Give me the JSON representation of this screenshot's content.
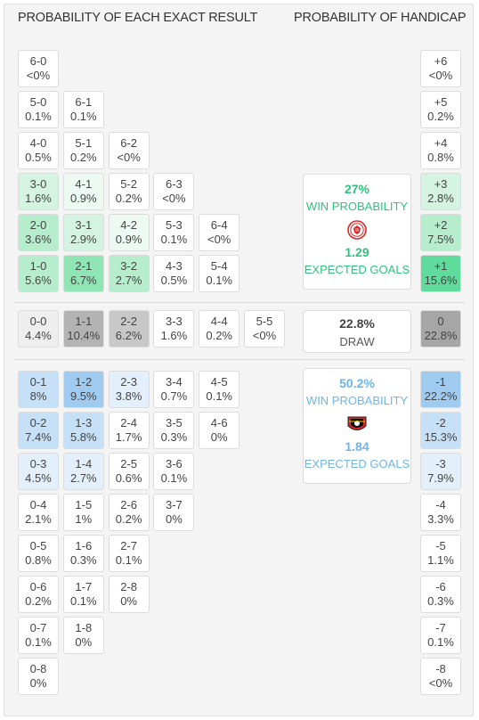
{
  "headers": {
    "left": "PROBABILITY OF EACH EXACT RESULT",
    "right": "PROBABILITY OF HANDICAP"
  },
  "colors": {
    "home_scale": [
      "#ffffff",
      "#edfaf2",
      "#d4f4e1",
      "#b6edcc",
      "#8fe5b3"
    ],
    "draw_scale": [
      "#eeeeee",
      "#c8c8c8",
      "#b3b3b3"
    ],
    "away_scale": [
      "#ffffff",
      "#e3f0fb",
      "#c6e0f7",
      "#9fcbf0"
    ],
    "home_text": "#2ec27e",
    "away_text": "#6fb5e6"
  },
  "home_results": [
    {
      "score": "6-0",
      "prob": "<0%",
      "shade": 0
    },
    {
      "score": "5-0",
      "prob": "0.1%",
      "shade": 0
    },
    {
      "score": "6-1",
      "prob": "0.1%",
      "shade": 0
    },
    {
      "score": "4-0",
      "prob": "0.5%",
      "shade": 0
    },
    {
      "score": "5-1",
      "prob": "0.2%",
      "shade": 0
    },
    {
      "score": "6-2",
      "prob": "<0%",
      "shade": 0
    },
    {
      "score": "3-0",
      "prob": "1.6%",
      "shade": 2
    },
    {
      "score": "4-1",
      "prob": "0.9%",
      "shade": 1
    },
    {
      "score": "5-2",
      "prob": "0.2%",
      "shade": 0
    },
    {
      "score": "6-3",
      "prob": "<0%",
      "shade": 0
    },
    {
      "score": "2-0",
      "prob": "3.6%",
      "shade": 3
    },
    {
      "score": "3-1",
      "prob": "2.9%",
      "shade": 2
    },
    {
      "score": "4-2",
      "prob": "0.9%",
      "shade": 1
    },
    {
      "score": "5-3",
      "prob": "0.1%",
      "shade": 0
    },
    {
      "score": "6-4",
      "prob": "<0%",
      "shade": 0
    },
    {
      "score": "1-0",
      "prob": "5.6%",
      "shade": 3
    },
    {
      "score": "2-1",
      "prob": "6.7%",
      "shade": 4
    },
    {
      "score": "3-2",
      "prob": "2.7%",
      "shade": 3
    },
    {
      "score": "4-3",
      "prob": "0.5%",
      "shade": 0
    },
    {
      "score": "5-4",
      "prob": "0.1%",
      "shade": 0
    }
  ],
  "draw_results": [
    {
      "score": "0-0",
      "prob": "4.4%",
      "shade": 0
    },
    {
      "score": "1-1",
      "prob": "10.4%",
      "shade": 2
    },
    {
      "score": "2-2",
      "prob": "6.2%",
      "shade": 1
    },
    {
      "score": "3-3",
      "prob": "1.6%",
      "shade": -1
    },
    {
      "score": "4-4",
      "prob": "0.2%",
      "shade": -1
    },
    {
      "score": "5-5",
      "prob": "<0%",
      "shade": -1
    }
  ],
  "away_results": [
    {
      "score": "0-1",
      "prob": "8%",
      "shade": 2
    },
    {
      "score": "1-2",
      "prob": "9.5%",
      "shade": 3
    },
    {
      "score": "2-3",
      "prob": "3.8%",
      "shade": 1
    },
    {
      "score": "3-4",
      "prob": "0.7%",
      "shade": 0
    },
    {
      "score": "4-5",
      "prob": "0.1%",
      "shade": 0
    },
    {
      "score": "0-2",
      "prob": "7.4%",
      "shade": 2
    },
    {
      "score": "1-3",
      "prob": "5.8%",
      "shade": 2
    },
    {
      "score": "2-4",
      "prob": "1.7%",
      "shade": 0
    },
    {
      "score": "3-5",
      "prob": "0.3%",
      "shade": 0
    },
    {
      "score": "4-6",
      "prob": "0%",
      "shade": 0
    },
    {
      "score": "0-3",
      "prob": "4.5%",
      "shade": 1
    },
    {
      "score": "1-4",
      "prob": "2.7%",
      "shade": 1
    },
    {
      "score": "2-5",
      "prob": "0.6%",
      "shade": 0
    },
    {
      "score": "3-6",
      "prob": "0.1%",
      "shade": 0
    },
    {
      "score": "0-4",
      "prob": "2.1%",
      "shade": 0
    },
    {
      "score": "1-5",
      "prob": "1%",
      "shade": 0
    },
    {
      "score": "2-6",
      "prob": "0.2%",
      "shade": 0
    },
    {
      "score": "3-7",
      "prob": "0%",
      "shade": 0
    },
    {
      "score": "0-5",
      "prob": "0.8%",
      "shade": 0
    },
    {
      "score": "1-6",
      "prob": "0.3%",
      "shade": 0
    },
    {
      "score": "2-7",
      "prob": "0.1%",
      "shade": 0
    },
    {
      "score": "0-6",
      "prob": "0.2%",
      "shade": 0
    },
    {
      "score": "1-7",
      "prob": "0.1%",
      "shade": 0
    },
    {
      "score": "2-8",
      "prob": "0%",
      "shade": 0
    },
    {
      "score": "0-7",
      "prob": "0.1%",
      "shade": 0
    },
    {
      "score": "1-8",
      "prob": "0%",
      "shade": 0
    },
    {
      "score": "0-8",
      "prob": "0%",
      "shade": 0
    }
  ],
  "handicap": [
    {
      "line": "+6",
      "prob": "<0%",
      "shade": "w"
    },
    {
      "line": "+5",
      "prob": "0.2%",
      "shade": "w"
    },
    {
      "line": "+4",
      "prob": "0.8%",
      "shade": "w"
    },
    {
      "line": "+3",
      "prob": "2.8%",
      "shade": "g2"
    },
    {
      "line": "+2",
      "prob": "7.5%",
      "shade": "g3"
    },
    {
      "line": "+1",
      "prob": "15.6%",
      "shade": "g4"
    },
    {
      "line": "0",
      "prob": "22.8%",
      "shade": "d"
    },
    {
      "line": "-1",
      "prob": "22.2%",
      "shade": "b3"
    },
    {
      "line": "-2",
      "prob": "15.3%",
      "shade": "b2"
    },
    {
      "line": "-3",
      "prob": "7.9%",
      "shade": "b1"
    },
    {
      "line": "-4",
      "prob": "3.3%",
      "shade": "w"
    },
    {
      "line": "-5",
      "prob": "1.1%",
      "shade": "w"
    },
    {
      "line": "-6",
      "prob": "0.3%",
      "shade": "w"
    },
    {
      "line": "-7",
      "prob": "0.1%",
      "shade": "w"
    },
    {
      "line": "-8",
      "prob": "<0%",
      "shade": "w"
    }
  ],
  "home_team": {
    "win_pct": "27%",
    "win_label": "WIN PROBABILITY",
    "xg": "1.29",
    "xg_label": "EXPECTED GOALS",
    "logo": "olympiacos-crest-icon"
  },
  "draw": {
    "pct": "22.8%",
    "label": "DRAW"
  },
  "away_team": {
    "win_pct": "50.2%",
    "win_label": "WIN PROBABILITY",
    "xg": "1.84",
    "xg_label": "EXPECTED GOALS",
    "logo": "leverkusen-crest-icon"
  }
}
